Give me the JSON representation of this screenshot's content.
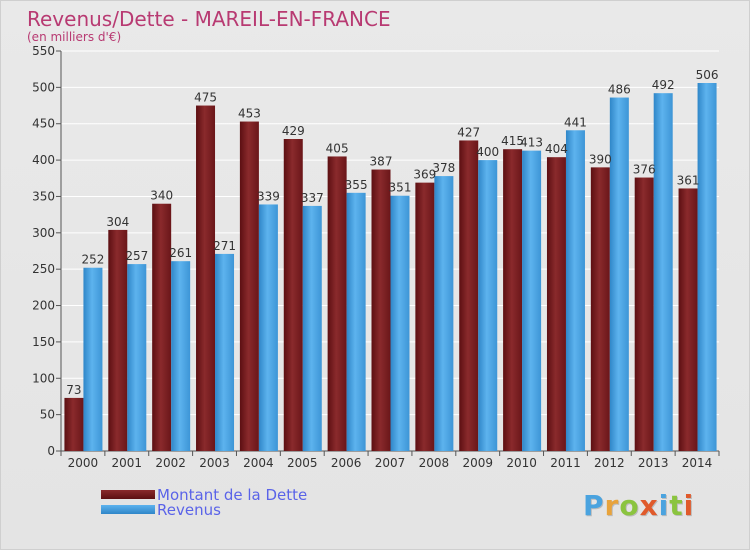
{
  "title": "Revenus/Dette - MAREIL-EN-FRANCE",
  "subtitle": "(en milliers d'€)",
  "logo": {
    "text": "Proxiti",
    "colors": [
      "#4aa3df",
      "#e8a33b",
      "#8bc43f",
      "#e05a2b",
      "#4aa3df",
      "#8bc43f",
      "#e05a2b"
    ]
  },
  "colors": {
    "dette": "#7a1c1f",
    "revenus": "#4ea6e6",
    "title": "#b83a72",
    "legend_text": "#5a63e8"
  },
  "chart_data": {
    "type": "bar",
    "title": "Revenus/Dette - MAREIL-EN-FRANCE",
    "subtitle": "(en milliers d'€)",
    "categories": [
      "2000",
      "2001",
      "2002",
      "2003",
      "2004",
      "2005",
      "2006",
      "2007",
      "2008",
      "2009",
      "2010",
      "2011",
      "2012",
      "2013",
      "2014"
    ],
    "series": [
      {
        "name": "Montant de la Dette",
        "values": [
          73,
          304,
          340,
          475,
          453,
          429,
          405,
          387,
          369,
          427,
          415,
          404,
          390,
          376,
          361
        ]
      },
      {
        "name": "Revenus",
        "values": [
          252,
          257,
          261,
          271,
          339,
          337,
          355,
          351,
          378,
          400,
          413,
          441,
          486,
          492,
          506
        ]
      }
    ],
    "ylim": [
      0,
      550
    ],
    "yticks": [
      0,
      50,
      100,
      150,
      200,
      250,
      300,
      350,
      400,
      450,
      500,
      550
    ],
    "grid": true,
    "legend": "bottom-left"
  }
}
